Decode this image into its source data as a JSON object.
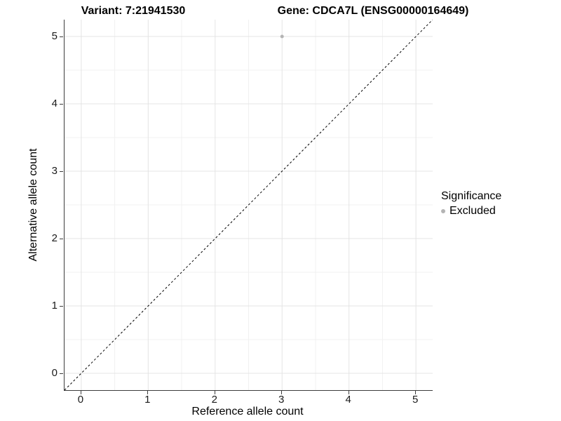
{
  "titles": {
    "left": "Variant: 7:21941530",
    "right": "Gene: CDCA7L (ENSG00000164649)"
  },
  "legend": {
    "title": "Significance",
    "items": [
      {
        "label": "Excluded",
        "color": "#b4b4b4"
      }
    ]
  },
  "chart_data": {
    "type": "scatter",
    "title": "Variant: 7:21941530 | Gene: CDCA7L (ENSG00000164649)",
    "xlabel": "Reference allele count",
    "ylabel": "Alternative allele count",
    "xlim": [
      -0.25,
      5.25
    ],
    "ylim": [
      -0.25,
      5.25
    ],
    "x_ticks": [
      0,
      1,
      2,
      3,
      4,
      5
    ],
    "y_ticks": [
      0,
      1,
      2,
      3,
      4,
      5
    ],
    "grid": "major-and-minor",
    "legend_position": "right",
    "series": [
      {
        "name": "Excluded",
        "color": "#b4b4b4",
        "points": [
          {
            "x": 3,
            "y": 5
          }
        ]
      }
    ],
    "reference_line": {
      "type": "identity",
      "slope": 1,
      "intercept": 0,
      "style": "dashed",
      "color": "#000000"
    },
    "colors": {
      "grid_major": "#e4e4e4",
      "grid_minor": "#f1f1f1",
      "axis_line": "#3c3c3c",
      "point": "#b4b4b4",
      "background": "#ffffff"
    }
  }
}
